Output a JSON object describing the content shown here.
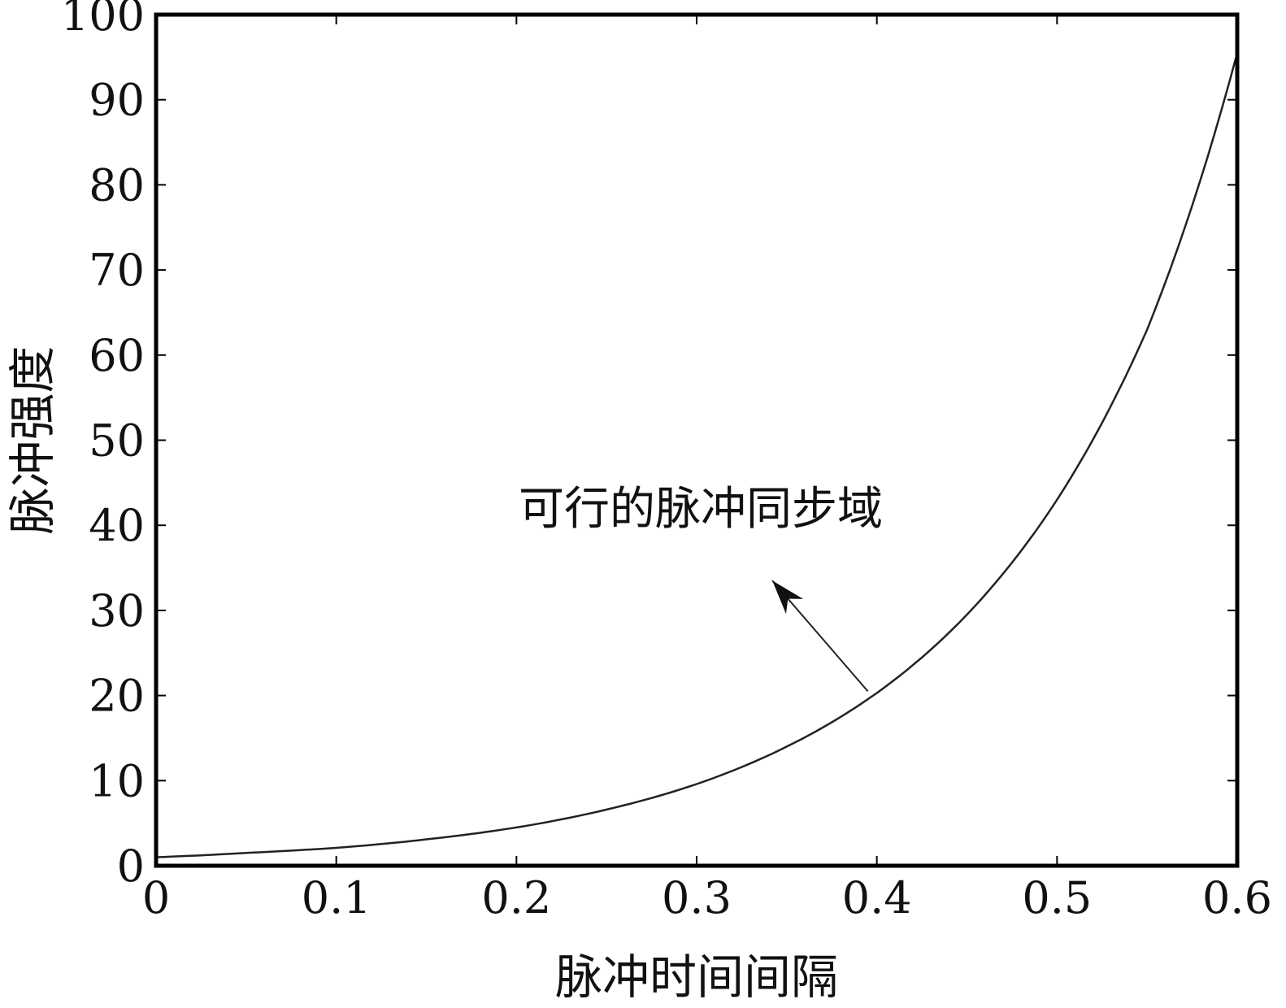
{
  "chart_data": {
    "type": "line",
    "title": "",
    "xlabel": "脉冲时间间隔",
    "ylabel": "脉冲强度",
    "xlim": [
      0,
      0.6
    ],
    "ylim": [
      0,
      100
    ],
    "x_ticks": [
      "0",
      "0.1",
      "0.2",
      "0.3",
      "0.4",
      "0.5",
      "0.6"
    ],
    "y_ticks": [
      "0",
      "10",
      "20",
      "30",
      "40",
      "50",
      "60",
      "70",
      "80",
      "90",
      "100"
    ],
    "grid": false,
    "series": [
      {
        "x": [
          0,
          0.05,
          0.1,
          0.15,
          0.2,
          0.25,
          0.3,
          0.35,
          0.4,
          0.45,
          0.5,
          0.55,
          0.6
        ],
        "y": [
          1,
          1.5,
          2.1,
          3.1,
          4.5,
          6.6,
          9.6,
          14.0,
          20.3,
          29.5,
          43.0,
          63.0,
          95.5
        ]
      }
    ],
    "annotation": {
      "text": "可行的脉冲同步域",
      "point": [
        0.395,
        20.5
      ],
      "arrow_tip": [
        0.342,
        33.5
      ]
    }
  }
}
